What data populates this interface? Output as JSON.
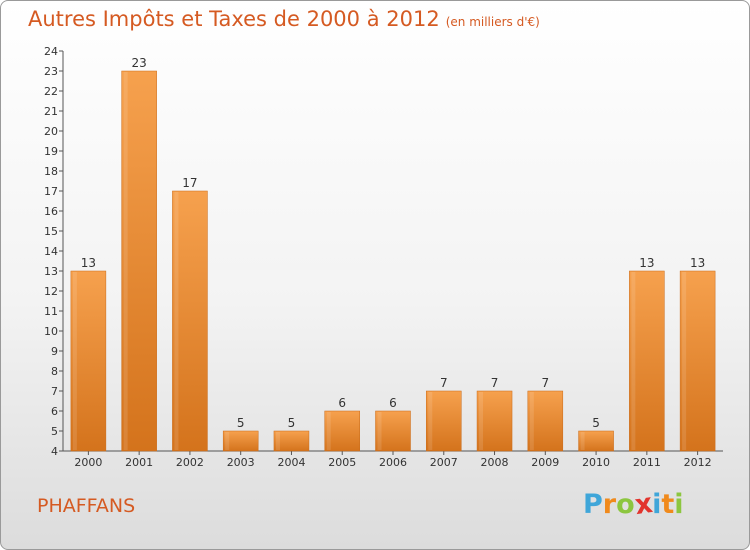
{
  "header": {
    "title": "Autres Impôts et Taxes de 2000 à 2012",
    "subtitle": "(en milliers d'€)"
  },
  "footer": {
    "commune": "PHAFFANS",
    "logo": [
      "P",
      "r",
      "o",
      "x",
      "i",
      "t",
      "i"
    ]
  },
  "colors": {
    "bar_light": "#f6a14e",
    "bar_dark": "#d4731c",
    "title": "#d55a22",
    "logo": [
      "#3fa6d9",
      "#f08a1c",
      "#8cc63f",
      "#e2342d",
      "#3fa6d9",
      "#f08a1c",
      "#8cc63f"
    ]
  },
  "chart_data": {
    "type": "bar",
    "title": "Autres Impôts et Taxes de 2000 à 2012",
    "subtitle": "(en milliers d'€)",
    "categories": [
      "2000",
      "2001",
      "2002",
      "2003",
      "2004",
      "2005",
      "2006",
      "2007",
      "2008",
      "2009",
      "2010",
      "2011",
      "2012"
    ],
    "values": [
      13,
      23,
      17,
      5,
      5,
      6,
      6,
      7,
      7,
      7,
      5,
      13,
      13
    ],
    "ylim": [
      4,
      24
    ],
    "yticks": [
      4,
      5,
      6,
      7,
      8,
      9,
      10,
      11,
      12,
      13,
      14,
      15,
      16,
      17,
      18,
      19,
      20,
      21,
      22,
      23,
      24
    ],
    "grid": false,
    "legend": "none"
  }
}
